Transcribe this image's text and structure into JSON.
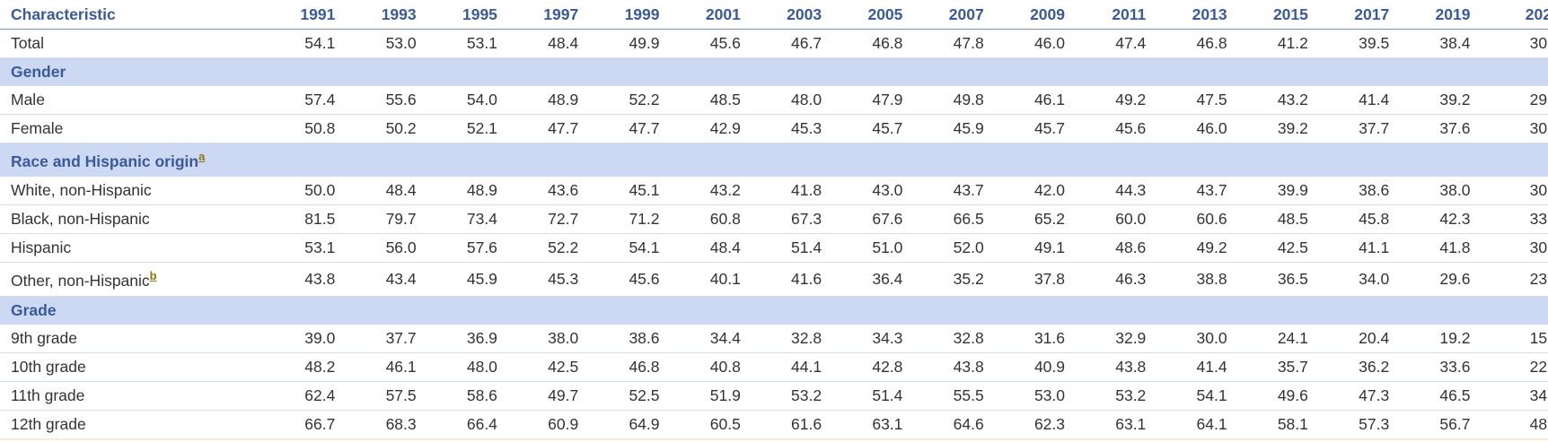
{
  "table": {
    "columns": [
      "Characteristic",
      "1991",
      "1993",
      "1995",
      "1997",
      "1999",
      "2001",
      "2003",
      "2005",
      "2007",
      "2009",
      "2011",
      "2013",
      "2015",
      "2017",
      "2019",
      "202"
    ],
    "rows": [
      {
        "label": "Total",
        "values": [
          "54.1",
          "53.0",
          "53.1",
          "48.4",
          "49.9",
          "45.6",
          "46.7",
          "46.8",
          "47.8",
          "46.0",
          "47.4",
          "46.8",
          "41.2",
          "39.5",
          "38.4",
          "30."
        ]
      },
      {
        "section": "Gender"
      },
      {
        "label": "Male",
        "values": [
          "57.4",
          "55.6",
          "54.0",
          "48.9",
          "52.2",
          "48.5",
          "48.0",
          "47.9",
          "49.8",
          "46.1",
          "49.2",
          "47.5",
          "43.2",
          "41.4",
          "39.2",
          "29."
        ]
      },
      {
        "label": "Female",
        "values": [
          "50.8",
          "50.2",
          "52.1",
          "47.7",
          "47.7",
          "42.9",
          "45.3",
          "45.7",
          "45.9",
          "45.7",
          "45.6",
          "46.0",
          "39.2",
          "37.7",
          "37.6",
          "30."
        ]
      },
      {
        "section": "Race and Hispanic origin",
        "note": "a"
      },
      {
        "label": "White, non-Hispanic",
        "values": [
          "50.0",
          "48.4",
          "48.9",
          "43.6",
          "45.1",
          "43.2",
          "41.8",
          "43.0",
          "43.7",
          "42.0",
          "44.3",
          "43.7",
          "39.9",
          "38.6",
          "38.0",
          "30."
        ]
      },
      {
        "label": "Black, non-Hispanic",
        "values": [
          "81.5",
          "79.7",
          "73.4",
          "72.7",
          "71.2",
          "60.8",
          "67.3",
          "67.6",
          "66.5",
          "65.2",
          "60.0",
          "60.6",
          "48.5",
          "45.8",
          "42.3",
          "33."
        ]
      },
      {
        "label": "Hispanic",
        "values": [
          "53.1",
          "56.0",
          "57.6",
          "52.2",
          "54.1",
          "48.4",
          "51.4",
          "51.0",
          "52.0",
          "49.1",
          "48.6",
          "49.2",
          "42.5",
          "41.1",
          "41.8",
          "30."
        ]
      },
      {
        "label": "Other, non-Hispanic",
        "note": "b",
        "values": [
          "43.8",
          "43.4",
          "45.9",
          "45.3",
          "45.6",
          "40.1",
          "41.6",
          "36.4",
          "35.2",
          "37.8",
          "46.3",
          "38.8",
          "36.5",
          "34.0",
          "29.6",
          "23."
        ]
      },
      {
        "section": "Grade"
      },
      {
        "label": "9th grade",
        "values": [
          "39.0",
          "37.7",
          "36.9",
          "38.0",
          "38.6",
          "34.4",
          "32.8",
          "34.3",
          "32.8",
          "31.6",
          "32.9",
          "30.0",
          "24.1",
          "20.4",
          "19.2",
          "15."
        ]
      },
      {
        "label": "10th grade",
        "values": [
          "48.2",
          "46.1",
          "48.0",
          "42.5",
          "46.8",
          "40.8",
          "44.1",
          "42.8",
          "43.8",
          "40.9",
          "43.8",
          "41.4",
          "35.7",
          "36.2",
          "33.6",
          "22."
        ]
      },
      {
        "label": "11th grade",
        "values": [
          "62.4",
          "57.5",
          "58.6",
          "49.7",
          "52.5",
          "51.9",
          "53.2",
          "51.4",
          "55.5",
          "53.0",
          "53.2",
          "54.1",
          "49.6",
          "47.3",
          "46.5",
          "34."
        ]
      },
      {
        "label": "12th grade",
        "values": [
          "66.7",
          "68.3",
          "66.4",
          "60.9",
          "64.9",
          "60.5",
          "61.6",
          "63.1",
          "64.6",
          "62.3",
          "63.1",
          "64.1",
          "58.1",
          "57.3",
          "56.7",
          "48."
        ]
      }
    ]
  }
}
